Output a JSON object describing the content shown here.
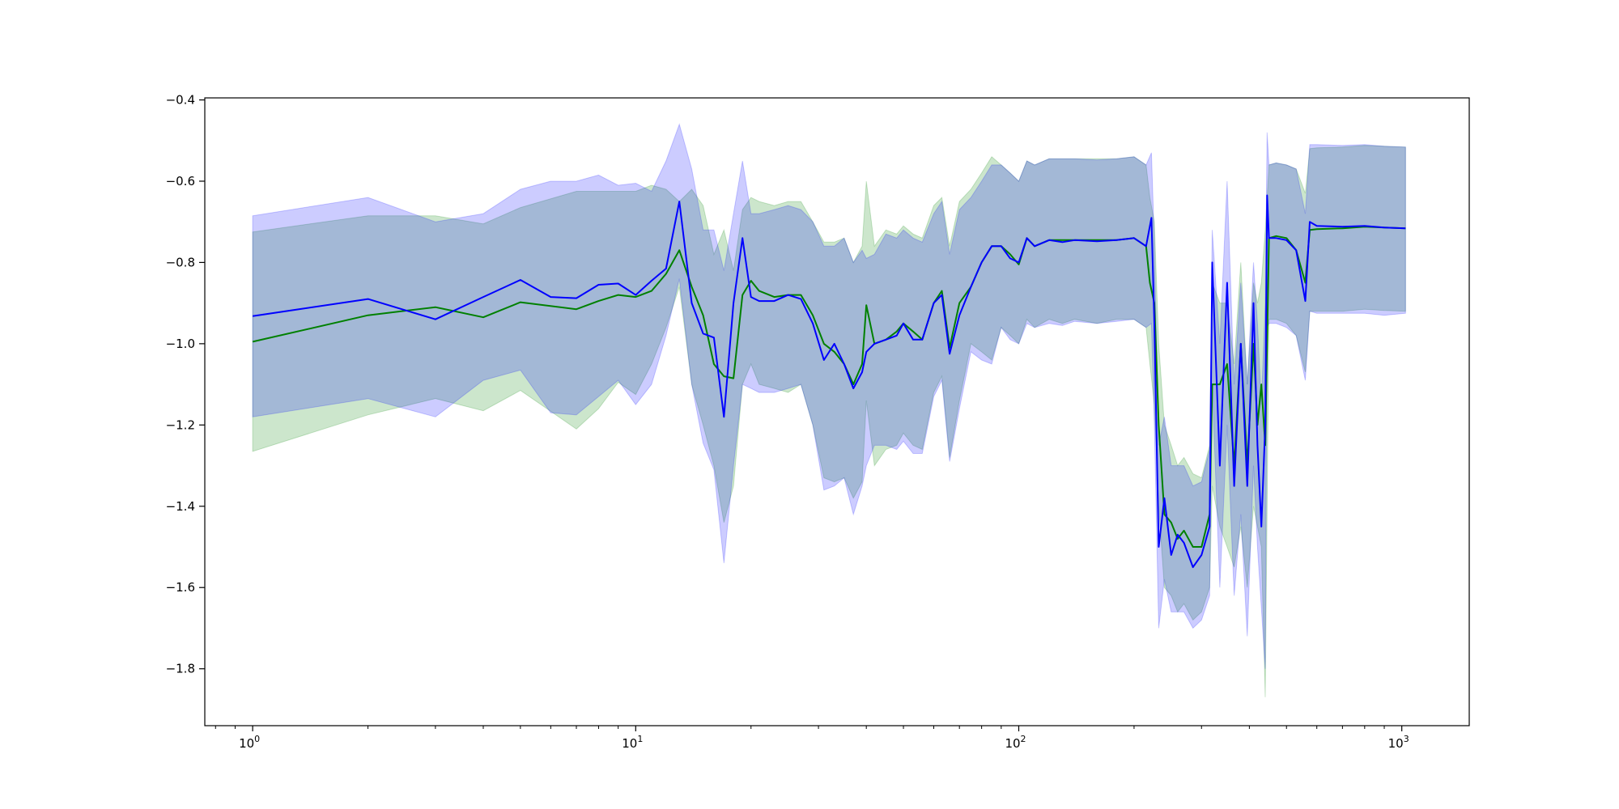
{
  "chart_data": {
    "type": "line",
    "title": "",
    "xlabel": "",
    "ylabel": "",
    "xscale": "log",
    "xlim": [
      0.75,
      1500
    ],
    "ylim": [
      -1.94,
      -0.395
    ],
    "grid": false,
    "legend": "none",
    "x_tick_labels": [
      {
        "value": 1,
        "base": "10",
        "exp": "0"
      },
      {
        "value": 10,
        "base": "10",
        "exp": "1"
      },
      {
        "value": 100,
        "base": "10",
        "exp": "2"
      },
      {
        "value": 1000,
        "base": "10",
        "exp": "3"
      }
    ],
    "y_tick_labels": [
      {
        "value": -0.4,
        "label": "−0.4"
      },
      {
        "value": -0.6,
        "label": "−0.6"
      },
      {
        "value": -0.8,
        "label": "−0.8"
      },
      {
        "value": -1.0,
        "label": "−1.0"
      },
      {
        "value": -1.2,
        "label": "−1.2"
      },
      {
        "value": -1.4,
        "label": "−1.4"
      },
      {
        "value": -1.6,
        "label": "−1.6"
      },
      {
        "value": -1.8,
        "label": "−1.8"
      }
    ],
    "series": [
      {
        "color": "#008000",
        "band_color": "#008000",
        "band_opacity": 0.2,
        "points": [
          [
            1,
            -0.995,
            -1.265,
            -0.725
          ],
          [
            2,
            -0.93,
            -1.175,
            -0.685
          ],
          [
            3,
            -0.91,
            -1.135,
            -0.685
          ],
          [
            4,
            -0.935,
            -1.165,
            -0.705
          ],
          [
            5,
            -0.898,
            -1.115,
            -0.665
          ],
          [
            7,
            -0.915,
            -1.21,
            -0.625
          ],
          [
            8,
            -0.895,
            -1.16,
            -0.625
          ],
          [
            9,
            -0.88,
            -1.095,
            -0.625
          ],
          [
            10,
            -0.885,
            -1.125,
            -0.625
          ],
          [
            11,
            -0.87,
            -1.05,
            -0.61
          ],
          [
            12,
            -0.828,
            -0.96,
            -0.62
          ],
          [
            13,
            -0.77,
            -0.86,
            -0.65
          ],
          [
            14,
            -0.86,
            -1.1,
            -0.62
          ],
          [
            15,
            -0.93,
            -1.2,
            -0.66
          ],
          [
            16,
            -1.05,
            -1.3,
            -0.78
          ],
          [
            17,
            -1.08,
            -1.44,
            -0.72
          ],
          [
            18,
            -1.085,
            -1.35,
            -0.82
          ],
          [
            19,
            -0.88,
            -1.1,
            -0.67
          ],
          [
            20,
            -0.845,
            -1.05,
            -0.64
          ],
          [
            21,
            -0.87,
            -1.1,
            -0.65
          ],
          [
            23,
            -0.885,
            -1.11,
            -0.66
          ],
          [
            25,
            -0.88,
            -1.12,
            -0.65
          ],
          [
            27,
            -0.88,
            -1.1,
            -0.65
          ],
          [
            29,
            -0.93,
            -1.2,
            -0.7
          ],
          [
            31,
            -1.0,
            -1.33,
            -0.75
          ],
          [
            33,
            -1.02,
            -1.34,
            -0.75
          ],
          [
            35,
            -1.05,
            -1.33,
            -0.74
          ],
          [
            37,
            -1.1,
            -1.38,
            -0.8
          ],
          [
            39,
            -1.05,
            -1.34,
            -0.76
          ],
          [
            40,
            -0.905,
            -1.14,
            -0.6
          ],
          [
            42,
            -1.0,
            -1.3,
            -0.76
          ],
          [
            45,
            -0.99,
            -1.26,
            -0.72
          ],
          [
            48,
            -0.97,
            -1.25,
            -0.73
          ],
          [
            50,
            -0.95,
            -1.22,
            -0.71
          ],
          [
            53,
            -0.97,
            -1.25,
            -0.73
          ],
          [
            56,
            -0.99,
            -1.26,
            -0.74
          ],
          [
            60,
            -0.9,
            -1.12,
            -0.66
          ],
          [
            63,
            -0.87,
            -1.08,
            -0.64
          ],
          [
            66,
            -1.01,
            -1.28,
            -0.76
          ],
          [
            70,
            -0.9,
            -1.14,
            -0.65
          ],
          [
            75,
            -0.86,
            -1.0,
            -0.62
          ],
          [
            80,
            -0.8,
            -1.02,
            -0.58
          ],
          [
            85,
            -0.76,
            -1.04,
            -0.54
          ],
          [
            90,
            -0.76,
            -0.96,
            -0.56
          ],
          [
            95,
            -0.78,
            -0.98,
            -0.58
          ],
          [
            100,
            -0.805,
            -1.0,
            -0.6
          ],
          [
            105,
            -0.74,
            -0.94,
            -0.55
          ],
          [
            110,
            -0.76,
            -0.96,
            -0.56
          ],
          [
            120,
            -0.745,
            -0.94,
            -0.545
          ],
          [
            130,
            -0.745,
            -0.95,
            -0.545
          ],
          [
            140,
            -0.745,
            -0.94,
            -0.545
          ],
          [
            160,
            -0.745,
            -0.95,
            -0.545
          ],
          [
            180,
            -0.745,
            -0.94,
            -0.545
          ],
          [
            200,
            -0.74,
            -0.94,
            -0.54
          ],
          [
            215,
            -0.76,
            -0.96,
            -0.56
          ],
          [
            220,
            -0.85,
            -1.05,
            -0.64
          ],
          [
            226,
            -0.9,
            -1.15,
            -0.7
          ],
          [
            232,
            -1.2,
            -1.4,
            -1.0
          ],
          [
            240,
            -1.42,
            -1.6,
            -1.2
          ],
          [
            250,
            -1.44,
            -1.62,
            -1.25
          ],
          [
            260,
            -1.48,
            -1.66,
            -1.3
          ],
          [
            270,
            -1.46,
            -1.64,
            -1.28
          ],
          [
            285,
            -1.5,
            -1.68,
            -1.32
          ],
          [
            300,
            -1.5,
            -1.66,
            -1.33
          ],
          [
            315,
            -1.42,
            -1.6,
            -1.25
          ],
          [
            320,
            -1.1,
            -1.35,
            -0.85
          ],
          [
            335,
            -1.1,
            -1.45,
            -0.9
          ],
          [
            350,
            -1.05,
            -1.5,
            -0.9
          ],
          [
            365,
            -1.3,
            -1.55,
            -1.05
          ],
          [
            380,
            -1.0,
            -1.45,
            -0.8
          ],
          [
            395,
            -1.3,
            -1.6,
            -1.1
          ],
          [
            410,
            -1.0,
            -1.4,
            -0.85
          ],
          [
            420,
            -1.2,
            -1.45,
            -0.9
          ],
          [
            430,
            -1.1,
            -1.5,
            -0.85
          ],
          [
            440,
            -1.25,
            -1.87,
            -0.72
          ],
          [
            450,
            -0.74,
            -0.94,
            -0.56
          ],
          [
            470,
            -0.735,
            -0.94,
            -0.555
          ],
          [
            500,
            -0.74,
            -0.95,
            -0.56
          ],
          [
            530,
            -0.77,
            -0.98,
            -0.57
          ],
          [
            560,
            -0.85,
            -1.07,
            -0.63
          ],
          [
            575,
            -0.72,
            -0.92,
            -0.52
          ],
          [
            600,
            -0.718,
            -0.92,
            -0.518
          ],
          [
            700,
            -0.716,
            -0.92,
            -0.516
          ],
          [
            800,
            -0.712,
            -0.915,
            -0.512
          ],
          [
            900,
            -0.714,
            -0.918,
            -0.514
          ],
          [
            1023,
            -0.716,
            -0.92,
            -0.516
          ]
        ]
      },
      {
        "color": "#0000ff",
        "band_color": "#0000ff",
        "band_opacity": 0.2,
        "points": [
          [
            1,
            -0.932,
            -1.18,
            -0.685
          ],
          [
            2,
            -0.89,
            -1.135,
            -0.64
          ],
          [
            3,
            -0.94,
            -1.18,
            -0.7
          ],
          [
            4,
            -0.885,
            -1.09,
            -0.68
          ],
          [
            5,
            -0.843,
            -1.065,
            -0.62
          ],
          [
            6,
            -0.885,
            -1.17,
            -0.6
          ],
          [
            7,
            -0.888,
            -1.175,
            -0.6
          ],
          [
            8,
            -0.855,
            -1.13,
            -0.585
          ],
          [
            9,
            -0.852,
            -1.09,
            -0.61
          ],
          [
            10,
            -0.88,
            -1.15,
            -0.605
          ],
          [
            11,
            -0.845,
            -1.1,
            -0.625
          ],
          [
            12,
            -0.815,
            -0.98,
            -0.55
          ],
          [
            13,
            -0.65,
            -0.84,
            -0.46
          ],
          [
            14,
            -0.9,
            -1.1,
            -0.57
          ],
          [
            15,
            -0.975,
            -1.245,
            -0.72
          ],
          [
            16,
            -0.985,
            -1.31,
            -0.72
          ],
          [
            17,
            -1.18,
            -1.54,
            -0.82
          ],
          [
            18,
            -0.9,
            -1.3,
            -0.68
          ],
          [
            19,
            -0.74,
            -1.1,
            -0.55
          ],
          [
            20,
            -0.885,
            -1.11,
            -0.68
          ],
          [
            21,
            -0.895,
            -1.12,
            -0.68
          ],
          [
            23,
            -0.895,
            -1.12,
            -0.67
          ],
          [
            25,
            -0.88,
            -1.11,
            -0.66
          ],
          [
            27,
            -0.89,
            -1.1,
            -0.67
          ],
          [
            29,
            -0.95,
            -1.2,
            -0.7
          ],
          [
            31,
            -1.04,
            -1.36,
            -0.76
          ],
          [
            33,
            -1.0,
            -1.35,
            -0.76
          ],
          [
            35,
            -1.05,
            -1.33,
            -0.74
          ],
          [
            37,
            -1.11,
            -1.42,
            -0.8
          ],
          [
            39,
            -1.07,
            -1.35,
            -0.77
          ],
          [
            40,
            -1.02,
            -1.3,
            -0.79
          ],
          [
            42,
            -1.0,
            -1.25,
            -0.78
          ],
          [
            45,
            -0.99,
            -1.25,
            -0.73
          ],
          [
            48,
            -0.98,
            -1.26,
            -0.74
          ],
          [
            50,
            -0.95,
            -1.24,
            -0.72
          ],
          [
            53,
            -0.99,
            -1.27,
            -0.74
          ],
          [
            56,
            -0.99,
            -1.27,
            -0.75
          ],
          [
            60,
            -0.9,
            -1.13,
            -0.68
          ],
          [
            63,
            -0.88,
            -1.09,
            -0.65
          ],
          [
            66,
            -1.025,
            -1.29,
            -0.78
          ],
          [
            70,
            -0.93,
            -1.16,
            -0.67
          ],
          [
            75,
            -0.86,
            -1.02,
            -0.64
          ],
          [
            80,
            -0.8,
            -1.04,
            -0.6
          ],
          [
            85,
            -0.76,
            -1.05,
            -0.56
          ],
          [
            90,
            -0.76,
            -0.96,
            -0.56
          ],
          [
            95,
            -0.79,
            -0.99,
            -0.58
          ],
          [
            100,
            -0.8,
            -1.0,
            -0.6
          ],
          [
            105,
            -0.74,
            -0.95,
            -0.55
          ],
          [
            110,
            -0.76,
            -0.96,
            -0.56
          ],
          [
            120,
            -0.745,
            -0.95,
            -0.545
          ],
          [
            130,
            -0.75,
            -0.955,
            -0.545
          ],
          [
            140,
            -0.745,
            -0.945,
            -0.545
          ],
          [
            160,
            -0.748,
            -0.95,
            -0.548
          ],
          [
            180,
            -0.745,
            -0.945,
            -0.545
          ],
          [
            200,
            -0.74,
            -0.94,
            -0.54
          ],
          [
            215,
            -0.76,
            -0.96,
            -0.56
          ],
          [
            222,
            -0.69,
            -0.95,
            -0.53
          ],
          [
            226,
            -0.95,
            -1.2,
            -0.75
          ],
          [
            232,
            -1.5,
            -1.7,
            -1.25
          ],
          [
            240,
            -1.38,
            -1.58,
            -1.18
          ],
          [
            250,
            -1.52,
            -1.66,
            -1.3
          ],
          [
            260,
            -1.47,
            -1.66,
            -1.3
          ],
          [
            270,
            -1.49,
            -1.66,
            -1.3
          ],
          [
            285,
            -1.55,
            -1.7,
            -1.35
          ],
          [
            300,
            -1.52,
            -1.68,
            -1.34
          ],
          [
            315,
            -1.45,
            -1.62,
            -1.26
          ],
          [
            320,
            -0.8,
            -1.1,
            -0.72
          ],
          [
            335,
            -1.3,
            -1.6,
            -1.0
          ],
          [
            350,
            -0.85,
            -1.2,
            -0.6
          ],
          [
            365,
            -1.35,
            -1.62,
            -1.1
          ],
          [
            380,
            -1.0,
            -1.42,
            -0.85
          ],
          [
            395,
            -1.35,
            -1.72,
            -1.1
          ],
          [
            410,
            -0.9,
            -1.3,
            -0.8
          ],
          [
            420,
            -1.25,
            -1.5,
            -0.95
          ],
          [
            430,
            -1.45,
            -1.65,
            -1.15
          ],
          [
            440,
            -1.2,
            -1.8,
            -0.9
          ],
          [
            445,
            -0.635,
            -0.96,
            -0.48
          ],
          [
            450,
            -0.74,
            -0.95,
            -0.56
          ],
          [
            470,
            -0.74,
            -0.95,
            -0.555
          ],
          [
            500,
            -0.745,
            -0.96,
            -0.56
          ],
          [
            530,
            -0.77,
            -0.98,
            -0.57
          ],
          [
            560,
            -0.895,
            -1.09,
            -0.68
          ],
          [
            575,
            -0.7,
            -0.92,
            -0.51
          ],
          [
            600,
            -0.71,
            -0.925,
            -0.51
          ],
          [
            700,
            -0.712,
            -0.925,
            -0.512
          ],
          [
            800,
            -0.71,
            -0.925,
            -0.51
          ],
          [
            900,
            -0.714,
            -0.93,
            -0.514
          ],
          [
            1023,
            -0.716,
            -0.925,
            -0.516
          ]
        ]
      }
    ]
  }
}
